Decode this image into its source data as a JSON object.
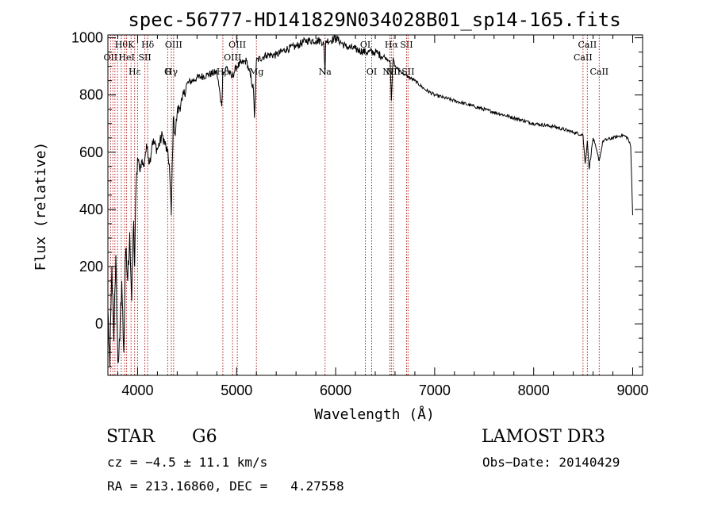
{
  "chart_data": {
    "type": "line",
    "title": "spec-56777-HD141829N034028B01_sp14-165.fits",
    "xlabel": "Wavelength (Å)",
    "ylabel": "Flux (relative)",
    "xlim": [
      3700,
      9100
    ],
    "ylim": [
      -180,
      1010
    ],
    "xticks": [
      4000,
      5000,
      6000,
      7000,
      8000,
      9000
    ],
    "yticks": [
      0,
      200,
      400,
      600,
      800,
      1000
    ],
    "xtick_labels": [
      "4000",
      "5000",
      "6000",
      "7000",
      "8000",
      "9000"
    ],
    "ytick_labels": [
      "0",
      "200",
      "400",
      "600",
      "800",
      "1000"
    ],
    "series": [
      {
        "name": "spectrum",
        "x": [
          3700,
          3720,
          3740,
          3760,
          3780,
          3800,
          3820,
          3840,
          3860,
          3880,
          3900,
          3920,
          3940,
          3960,
          3970,
          3980,
          4000,
          4020,
          4040,
          4060,
          4080,
          4100,
          4120,
          4150,
          4200,
          4250,
          4300,
          4320,
          4340,
          4360,
          4380,
          4400,
          4450,
          4500,
          4600,
          4700,
          4800,
          4850,
          4860,
          4880,
          4900,
          4950,
          5000,
          5100,
          5170,
          5180,
          5200,
          5300,
          5400,
          5500,
          5600,
          5700,
          5800,
          5850,
          5880,
          5893,
          5900,
          5950,
          6000,
          6100,
          6200,
          6300,
          6400,
          6500,
          6550,
          6563,
          6580,
          6600,
          6700,
          6800,
          6900,
          7000,
          7200,
          7400,
          7600,
          7800,
          8000,
          8200,
          8400,
          8498,
          8520,
          8542,
          8560,
          8600,
          8662,
          8700,
          8800,
          8900,
          8950,
          8980,
          9000
        ],
        "values": [
          50,
          -150,
          200,
          -60,
          240,
          -130,
          -60,
          150,
          -100,
          260,
          150,
          320,
          80,
          360,
          200,
          420,
          580,
          540,
          570,
          550,
          600,
          620,
          560,
          640,
          610,
          660,
          600,
          560,
          380,
          720,
          660,
          740,
          780,
          840,
          860,
          870,
          880,
          760,
          880,
          880,
          900,
          860,
          900,
          920,
          820,
          720,
          920,
          940,
          940,
          960,
          970,
          990,
          990,
          990,
          980,
          870,
          990,
          990,
          1000,
          970,
          960,
          950,
          950,
          930,
          920,
          780,
          930,
          900,
          870,
          850,
          820,
          800,
          780,
          760,
          740,
          720,
          700,
          690,
          670,
          660,
          560,
          640,
          540,
          650,
          570,
          640,
          650,
          660,
          650,
          620,
          380
        ]
      }
    ],
    "emission_lines": [
      {
        "x": 3727,
        "label": "OII",
        "row": 1
      },
      {
        "x": 3750,
        "label": "",
        "row": 0
      },
      {
        "x": 3771,
        "label": "",
        "row": 0
      },
      {
        "x": 3798,
        "label": "",
        "row": 0
      },
      {
        "x": 3835,
        "label": "Hθ",
        "row": 0
      },
      {
        "x": 3869,
        "label": "",
        "row": 0
      },
      {
        "x": 3889,
        "label": "HeI",
        "row": 1
      },
      {
        "x": 3934,
        "label": "K",
        "row": 0
      },
      {
        "x": 3970,
        "label": "Hε",
        "row": 2
      },
      {
        "x": 4000,
        "label": "",
        "row": 0
      },
      {
        "x": 4073,
        "label": "SII",
        "row": 1
      },
      {
        "x": 4102,
        "label": "Hδ",
        "row": 0
      },
      {
        "x": 4304,
        "label": "G",
        "row": 3
      },
      {
        "x": 4341,
        "label": "Hγ",
        "row": 2
      },
      {
        "x": 4364,
        "label": "OIII",
        "row": 0
      },
      {
        "x": 4861,
        "label": "Hβ",
        "row": 3
      },
      {
        "x": 4959,
        "label": "OIII",
        "row": 1
      },
      {
        "x": 5007,
        "label": "OIII",
        "row": 0
      },
      {
        "x": 5200,
        "label": "Mg",
        "row": 3
      },
      {
        "x": 5893,
        "label": "Na",
        "row": 2
      },
      {
        "x": 6300,
        "label": "OI",
        "row": 0
      },
      {
        "x": 6364,
        "label": "OI",
        "row": 3
      },
      {
        "x": 6548,
        "label": "NII",
        "row": 2
      },
      {
        "x": 6563,
        "label": "Hα",
        "row": 0
      },
      {
        "x": 6583,
        "label": "NII",
        "row": 3
      },
      {
        "x": 6716,
        "label": "SII",
        "row": 0
      },
      {
        "x": 6731,
        "label": "SII",
        "row": 3
      },
      {
        "x": 8498,
        "label": "CaII",
        "row": 1
      },
      {
        "x": 8542,
        "label": "CaII",
        "row": 0
      },
      {
        "x": 8662,
        "label": "CaII",
        "row": 3
      }
    ],
    "grid": false,
    "legend": "none"
  },
  "info": {
    "object_class": "STAR",
    "subclass": "G6",
    "survey": "LAMOST DR3",
    "redshift": "cz = −4.5 ± 11.1 km/s",
    "obs_date": "Obs−Date: 20140429",
    "coords": "RA = 213.16860, DEC =   4.27558"
  },
  "colors": {
    "line": "#000000",
    "marker_lines": "#b22222",
    "background": "#ffffff"
  }
}
